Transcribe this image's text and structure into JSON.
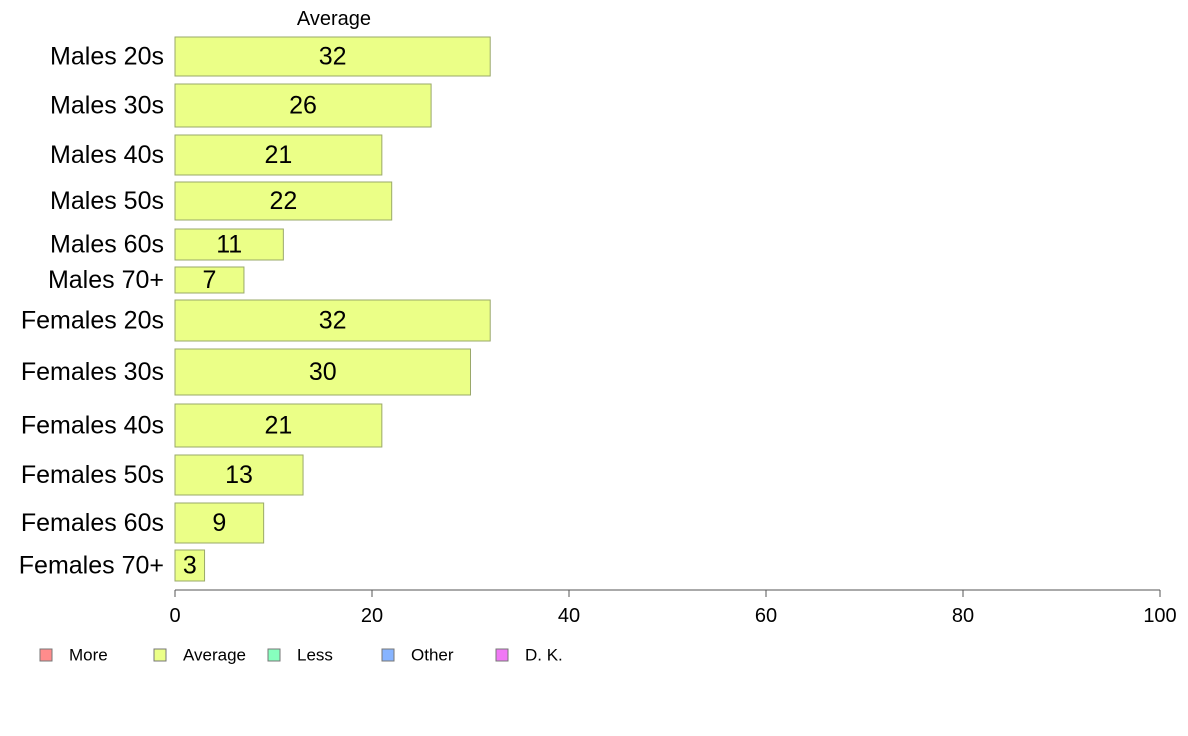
{
  "chart_data": {
    "type": "bar",
    "orientation": "horizontal",
    "stacked": true,
    "column_header": "Average",
    "categories": [
      "Males 20s",
      "Males 30s",
      "Males 40s",
      "Males 50s",
      "Males 60s",
      "Males 70+",
      "Females 20s",
      "Females 30s",
      "Females 40s",
      "Females 50s",
      "Females 60s",
      "Females 70+"
    ],
    "series": [
      {
        "name": "Average",
        "color": "#ebff87",
        "values": [
          32,
          26,
          21,
          22,
          11,
          7,
          32,
          30,
          21,
          13,
          9,
          3
        ]
      }
    ],
    "bar_labels": [
      "32",
      "26",
      "21",
      "22",
      "11",
      "7",
      "32",
      "30",
      "21",
      "13",
      "9",
      "3"
    ],
    "xlim": [
      0,
      100
    ],
    "xticks": [
      0,
      20,
      40,
      60,
      80,
      100
    ],
    "xtick_labels": [
      "0",
      "20",
      "40",
      "60",
      "80",
      "100"
    ],
    "grid": false,
    "legend": {
      "position": "bottom-left",
      "entries": [
        {
          "label": "More",
          "color": "#ff8c8c"
        },
        {
          "label": "Average",
          "color": "#ebff87"
        },
        {
          "label": "Less",
          "color": "#87ffbe"
        },
        {
          "label": "Other",
          "color": "#87b4ff"
        },
        {
          "label": "D. K.",
          "color": "#f078f5"
        }
      ]
    },
    "colors": {
      "bar_border": "#9aa86a",
      "axis": "#555555"
    }
  }
}
